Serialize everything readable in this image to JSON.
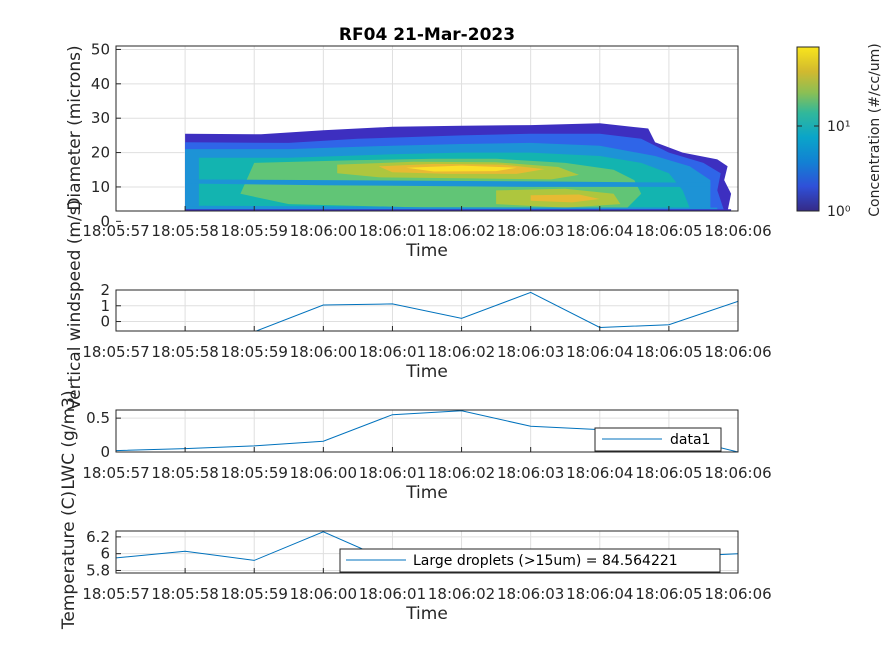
{
  "chart_data": [
    {
      "type": "heatmap",
      "title": "RF04 21-Mar-2023",
      "xlabel": "Time",
      "ylabel": "Diameter (microns)",
      "x_ticks": [
        "18:05:57",
        "18:05:58",
        "18:05:59",
        "18:06:00",
        "18:06:01",
        "18:06:02",
        "18:06:03",
        "18:06:04",
        "18:06:05",
        "18:06:06"
      ],
      "y_ticks": [
        "0",
        "10",
        "20",
        "30",
        "40",
        "50"
      ],
      "ylim": [
        3,
        51
      ],
      "grid": true,
      "colorbar": {
        "label": "Concentration (#/cc/um)",
        "scale": "log",
        "ticks": [
          "10⁰",
          "10¹"
        ]
      },
      "contours": [
        {
          "level": 1.0,
          "color": "#3d2fc0",
          "points": [
            [
              1,
              25.5
            ],
            [
              2.1,
              25.3
            ],
            [
              3,
              26.5
            ],
            [
              4,
              27.5
            ],
            [
              5,
              27.8
            ],
            [
              6,
              28
            ],
            [
              7,
              28.5
            ],
            [
              7.7,
              27
            ],
            [
              7.8,
              23
            ],
            [
              8.2,
              20
            ],
            [
              8.7,
              18
            ],
            [
              8.85,
              16
            ],
            [
              8.8,
              12
            ],
            [
              8.9,
              8
            ],
            [
              8.85,
              3
            ],
            [
              1,
              3
            ],
            [
              1,
              24
            ],
            [
              2.8,
              24
            ],
            [
              1,
              23.8
            ]
          ]
        },
        {
          "level": 1.8,
          "color": "#2f65e8",
          "points": [
            [
              1,
              23
            ],
            [
              2.5,
              22.8
            ],
            [
              3.5,
              24
            ],
            [
              5,
              25
            ],
            [
              6,
              25.5
            ],
            [
              7,
              25.5
            ],
            [
              7.6,
              24
            ],
            [
              8,
              20
            ],
            [
              8.5,
              17
            ],
            [
              8.75,
              14
            ],
            [
              8.7,
              9
            ],
            [
              8.8,
              3
            ],
            [
              1,
              3
            ]
          ]
        },
        {
          "level": 3.5,
          "color": "#1d93d6",
          "points": [
            [
              1,
              21
            ],
            [
              2.5,
              21
            ],
            [
              4,
              22
            ],
            [
              5,
              22.5
            ],
            [
              6,
              22.8
            ],
            [
              7,
              22
            ],
            [
              7.8,
              19
            ],
            [
              8.3,
              16
            ],
            [
              8.6,
              12
            ],
            [
              8.6,
              3
            ],
            [
              1,
              3
            ]
          ]
        },
        {
          "level": 6.5,
          "color": "#13b4b0",
          "points": [
            [
              1.2,
              18.5
            ],
            [
              2.5,
              18.5
            ],
            [
              4,
              19.5
            ],
            [
              5,
              20
            ],
            [
              6,
              20
            ],
            [
              7,
              19
            ],
            [
              7.6,
              17
            ],
            [
              8,
              14
            ],
            [
              8.2,
              9
            ],
            [
              8.3,
              4
            ],
            [
              1.2,
              4.5
            ]
          ]
        },
        {
          "level": 12,
          "color": "#61c576",
          "points": [
            [
              2,
              17
            ],
            [
              3.5,
              17.8
            ],
            [
              4.6,
              18.2
            ],
            [
              5.5,
              18.2
            ],
            [
              6.5,
              17
            ],
            [
              7.2,
              15
            ],
            [
              7.5,
              12
            ],
            [
              7.6,
              8
            ],
            [
              7.4,
              4
            ],
            [
              4.5,
              4
            ],
            [
              2.5,
              5
            ],
            [
              1.8,
              8
            ]
          ]
        },
        {
          "level": 22,
          "color": "#aec63e",
          "points": [
            [
              3.2,
              16.5
            ],
            [
              4.3,
              17.3
            ],
            [
              5.5,
              17.2
            ],
            [
              6.4,
              15.8
            ],
            [
              6.7,
              13.5
            ],
            [
              6.3,
              12.2
            ],
            [
              5,
              12.5
            ],
            [
              3.8,
              12.8
            ],
            [
              3.2,
              14
            ]
          ]
        },
        {
          "level": 35,
          "color": "#e7ba33",
          "points": [
            [
              3.8,
              16
            ],
            [
              4.6,
              16.7
            ],
            [
              5.6,
              16.5
            ],
            [
              6.2,
              15.2
            ],
            [
              5.8,
              13.8
            ],
            [
              4.8,
              13.8
            ],
            [
              4,
              14.3
            ]
          ]
        },
        {
          "level": 55,
          "color": "#fbe028",
          "points": [
            [
              4.2,
              15.6
            ],
            [
              5,
              16.2
            ],
            [
              5.8,
              15.6
            ],
            [
              5.5,
              14.6
            ],
            [
              4.6,
              14.5
            ]
          ]
        },
        {
          "level": 22,
          "color": "#aec63e",
          "points": [
            [
              5.5,
              9
            ],
            [
              6.5,
              9.5
            ],
            [
              7.2,
              8
            ],
            [
              7.3,
              5
            ],
            [
              6.5,
              4
            ],
            [
              5.5,
              5
            ]
          ]
        },
        {
          "level": 35,
          "color": "#e7ba33",
          "points": [
            [
              6,
              7.6
            ],
            [
              6.7,
              7.8
            ],
            [
              7,
              6.5
            ],
            [
              6.6,
              5.5
            ],
            [
              6,
              6
            ]
          ]
        },
        {
          "level": 3.5,
          "color": "#1d93d6",
          "points": [
            [
              1,
              11
            ],
            [
              3,
              10.5
            ],
            [
              6,
              10
            ],
            [
              8.6,
              10
            ],
            [
              8.6,
              11.2
            ],
            [
              6,
              11.6
            ],
            [
              3,
              12
            ],
            [
              1,
              12.2
            ]
          ]
        },
        {
          "level": 3.5,
          "color": "#1d93d6",
          "points": [
            [
              1,
              3
            ],
            [
              8.7,
              3
            ],
            [
              8.7,
              4
            ],
            [
              1,
              4.2
            ]
          ]
        },
        {
          "level": 1.0,
          "color": "#3d2fc0",
          "points": [
            [
              1,
              3
            ],
            [
              8.9,
              3
            ],
            [
              8.9,
              3.5
            ],
            [
              1,
              3.5
            ]
          ]
        }
      ]
    },
    {
      "type": "line",
      "ylabel": "Vertical windspeed (m/s)",
      "xlabel": "Time",
      "x_ticks": [
        "18:05:57",
        "18:05:58",
        "18:05:59",
        "18:06:00",
        "18:06:01",
        "18:06:02",
        "18:06:03",
        "18:06:04",
        "18:06:05",
        "18:06:06"
      ],
      "y_ticks": [
        "0",
        "1",
        "2"
      ],
      "ylim": [
        -0.6,
        2
      ],
      "grid": true,
      "series": [
        {
          "color": "#0072bd",
          "x": [
            0,
            1,
            2,
            3,
            4,
            5,
            6,
            7,
            8,
            9
          ],
          "y": [
            -0.85,
            -0.75,
            -0.65,
            1.05,
            1.12,
            0.2,
            1.85,
            -0.38,
            -0.2,
            1.28
          ]
        }
      ]
    },
    {
      "type": "line",
      "ylabel": "LWC (g/m3)",
      "xlabel": "Time",
      "x_ticks": [
        "18:05:57",
        "18:05:58",
        "18:05:59",
        "18:06:00",
        "18:06:01",
        "18:06:02",
        "18:06:03",
        "18:06:04",
        "18:06:05",
        "18:06:06"
      ],
      "y_ticks": [
        "0",
        "0.5"
      ],
      "ylim": [
        0,
        0.62
      ],
      "grid": true,
      "legend": {
        "entries": [
          "data1"
        ],
        "placement": "bottom-right"
      },
      "series": [
        {
          "name": "data1",
          "color": "#0072bd",
          "x": [
            0,
            1,
            2,
            3,
            4,
            5,
            6,
            7,
            8,
            9
          ],
          "y": [
            0.02,
            0.05,
            0.09,
            0.16,
            0.55,
            0.61,
            0.38,
            0.33,
            0.25,
            0.0
          ]
        }
      ]
    },
    {
      "type": "line",
      "ylabel": "Temperature (C)",
      "xlabel": "Time",
      "x_ticks": [
        "18:05:57",
        "18:05:58",
        "18:05:59",
        "18:06:00",
        "18:06:01",
        "18:06:02",
        "18:06:03",
        "18:06:04",
        "18:06:05",
        "18:06:06"
      ],
      "y_ticks": [
        "5.8",
        "6",
        "6.2"
      ],
      "ylim": [
        5.77,
        6.27
      ],
      "grid": true,
      "legend": {
        "entries": [
          "Large droplets (>15um) = 84.564221"
        ],
        "placement": "bottom-right"
      },
      "series": [
        {
          "name": "Large droplets (>15um) = 84.564221",
          "color": "#0072bd",
          "x": [
            0,
            1,
            2,
            3,
            4,
            5,
            6,
            7,
            8,
            9
          ],
          "y": [
            5.95,
            6.03,
            5.92,
            6.26,
            5.9,
            5.95,
            5.93,
            5.95,
            5.96,
            6.0
          ]
        }
      ]
    }
  ]
}
